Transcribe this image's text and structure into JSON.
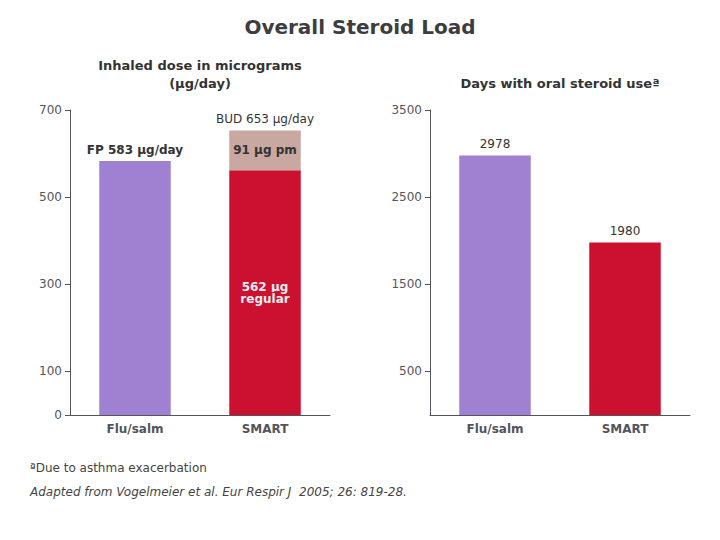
{
  "title": "Overall Steroid Load",
  "footnotes": [
    "ªDue to asthma exacerbation",
    "Adapted from Vogelmeier et al. Eur Respir J  2005; 26: 819-28."
  ],
  "chart_data": [
    {
      "type": "bar",
      "subtitle": "Inhaled dose in micrograms\n(μg/day)",
      "categories": [
        "Flu/salm",
        "SMART"
      ],
      "stacked": true,
      "series": [
        {
          "color": "#a080d0",
          "values": [
            583,
            null
          ],
          "value_labels": [
            "FP 583 μg/day",
            null
          ]
        },
        {
          "color": "#cc1030",
          "values": [
            null,
            562
          ],
          "value_labels": [
            null,
            "562 μg\nregular"
          ]
        },
        {
          "color": "#c8a8a0",
          "values": [
            null,
            91
          ],
          "value_labels": [
            null,
            "91 μg pm"
          ]
        }
      ],
      "annotations": [
        {
          "text": "BUD 653 μg/day",
          "category": "SMART",
          "value": 653
        }
      ],
      "ylim": [
        0,
        700
      ],
      "yticks": [
        0,
        100,
        300,
        500,
        700
      ],
      "grid": false
    },
    {
      "type": "bar",
      "subtitle": "Days with oral steroid useª",
      "categories": [
        "Flu/salm",
        "SMART"
      ],
      "values": [
        2978,
        1980
      ],
      "colors": [
        "#a080d0",
        "#cc1030"
      ],
      "data_labels": true,
      "ylim": [
        0,
        3500
      ],
      "yticks": [
        500,
        1500,
        2500,
        3500
      ],
      "grid": false
    }
  ]
}
